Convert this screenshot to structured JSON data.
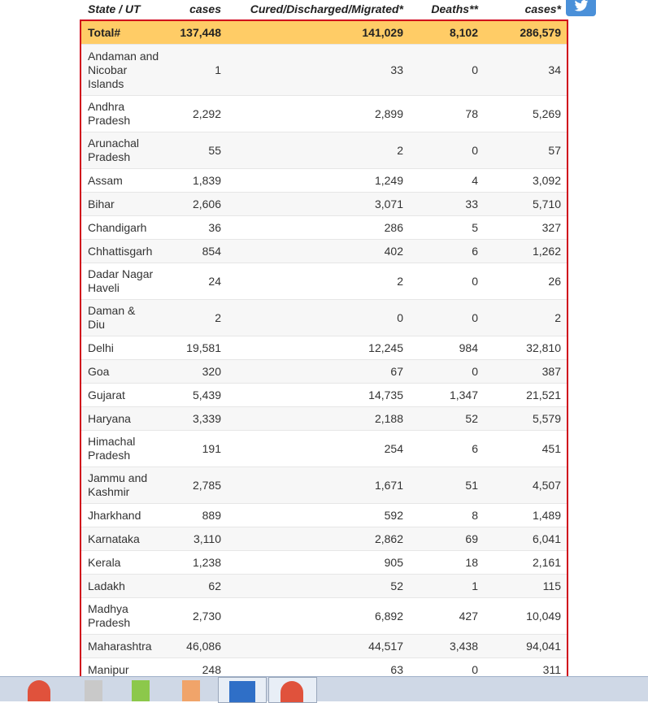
{
  "header": {
    "col_state": "State / UT",
    "col_cases": "cases",
    "col_cured": "Cured/Discharged/Migrated*",
    "col_deaths": "Deaths**",
    "col_total": "cases*"
  },
  "total": {
    "name": "Total#",
    "cases": "137,448",
    "cured": "141,029",
    "deaths": "8,102",
    "total": "286,579"
  },
  "rows": [
    {
      "name": "Andaman and Nicobar Islands",
      "cases": "1",
      "cured": "33",
      "deaths": "0",
      "total": "34"
    },
    {
      "name": "Andhra Pradesh",
      "cases": "2,292",
      "cured": "2,899",
      "deaths": "78",
      "total": "5,269"
    },
    {
      "name": "Arunachal Pradesh",
      "cases": "55",
      "cured": "2",
      "deaths": "0",
      "total": "57"
    },
    {
      "name": "Assam",
      "cases": "1,839",
      "cured": "1,249",
      "deaths": "4",
      "total": "3,092"
    },
    {
      "name": "Bihar",
      "cases": "2,606",
      "cured": "3,071",
      "deaths": "33",
      "total": "5,710"
    },
    {
      "name": "Chandigarh",
      "cases": "36",
      "cured": "286",
      "deaths": "5",
      "total": "327"
    },
    {
      "name": "Chhattisgarh",
      "cases": "854",
      "cured": "402",
      "deaths": "6",
      "total": "1,262"
    },
    {
      "name": "Dadar Nagar Haveli",
      "cases": "24",
      "cured": "2",
      "deaths": "0",
      "total": "26"
    },
    {
      "name": "Daman & Diu",
      "cases": "2",
      "cured": "0",
      "deaths": "0",
      "total": "2"
    },
    {
      "name": "Delhi",
      "cases": "19,581",
      "cured": "12,245",
      "deaths": "984",
      "total": "32,810"
    },
    {
      "name": "Goa",
      "cases": "320",
      "cured": "67",
      "deaths": "0",
      "total": "387"
    },
    {
      "name": "Gujarat",
      "cases": "5,439",
      "cured": "14,735",
      "deaths": "1,347",
      "total": "21,521"
    },
    {
      "name": "Haryana",
      "cases": "3,339",
      "cured": "2,188",
      "deaths": "52",
      "total": "5,579"
    },
    {
      "name": "Himachal Pradesh",
      "cases": "191",
      "cured": "254",
      "deaths": "6",
      "total": "451"
    },
    {
      "name": "Jammu and Kashmir",
      "cases": "2,785",
      "cured": "1,671",
      "deaths": "51",
      "total": "4,507"
    },
    {
      "name": "Jharkhand",
      "cases": "889",
      "cured": "592",
      "deaths": "8",
      "total": "1,489"
    },
    {
      "name": "Karnataka",
      "cases": "3,110",
      "cured": "2,862",
      "deaths": "69",
      "total": "6,041"
    },
    {
      "name": "Kerala",
      "cases": "1,238",
      "cured": "905",
      "deaths": "18",
      "total": "2,161"
    },
    {
      "name": "Ladakh",
      "cases": "62",
      "cured": "52",
      "deaths": "1",
      "total": "115"
    },
    {
      "name": "Madhya Pradesh",
      "cases": "2,730",
      "cured": "6,892",
      "deaths": "427",
      "total": "10,049"
    },
    {
      "name": "Maharashtra",
      "cases": "46,086",
      "cured": "44,517",
      "deaths": "3,438",
      "total": "94,041"
    },
    {
      "name": "Manipur",
      "cases": "248",
      "cured": "63",
      "deaths": "0",
      "total": "311"
    }
  ],
  "colors": {
    "border": "#d0021b",
    "total_bg": "#ffcc66",
    "twitter": "#4a90d9"
  },
  "icons": {
    "share": "twitter-icon"
  }
}
